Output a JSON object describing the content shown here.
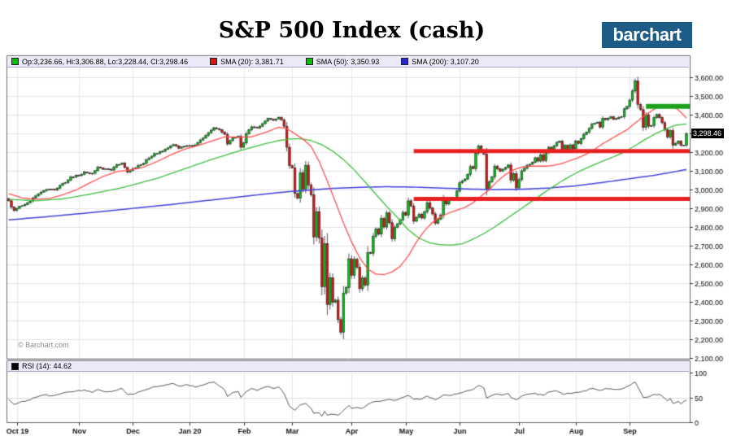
{
  "title": "S&P 500 Index (cash)",
  "logo": {
    "text": "barchart",
    "bg": "#1d5c87"
  },
  "watermark": "© Barchart.com",
  "legend": {
    "items": [
      {
        "label": "Op:3,236.66, Hi:3,306.88, Lo:3,228.44, Cl:3,298.46",
        "color": "#00c000"
      },
      {
        "label": "SMA (20): 3,381.71",
        "color": "#dc1414"
      },
      {
        "label": "SMA (50): 3,350.93",
        "color": "#00c000"
      },
      {
        "label": "SMA (200): 3,107.20",
        "color": "#2828c8"
      }
    ]
  },
  "chart_data": {
    "type": "candlestick",
    "symbol": "S&P 500 Index (cash)",
    "n_days": 252,
    "last": {
      "open": 3236.66,
      "high": 3306.88,
      "low": 3228.44,
      "close": 3298.46,
      "close_label": "3,298.46"
    },
    "colors": {
      "up": "#00c414",
      "down": "#dc1414",
      "candle_edge": "#222222",
      "wick": "#444444",
      "sma20": "#ff5050",
      "sma50": "#3cc03c",
      "sma200": "#4040e0",
      "hline_red": "#e82020",
      "hline_green": "#1da11d",
      "rsi_line": "#555555",
      "grid_h": "#e2e2e2",
      "grid_v": "#e6e6f0",
      "frame": "#666666"
    },
    "y_axis": {
      "min": 2100,
      "max": 3600,
      "step": 100,
      "ticks": [
        {
          "v": 3600,
          "label": "3,600.00"
        },
        {
          "v": 3500,
          "label": "3,500.00"
        },
        {
          "v": 3400,
          "label": "3,400.00"
        },
        {
          "v": 3200,
          "label": "3,200.00"
        },
        {
          "v": 3100,
          "label": "3,100.00"
        },
        {
          "v": 3000,
          "label": "3,000.00"
        },
        {
          "v": 2900,
          "label": "2,900.00"
        },
        {
          "v": 2800,
          "label": "2,800.00"
        },
        {
          "v": 2700,
          "label": "2,700.00"
        },
        {
          "v": 2600,
          "label": "2,600.00"
        },
        {
          "v": 2500,
          "label": "2,500.00"
        },
        {
          "v": 2400,
          "label": "2,400.00"
        },
        {
          "v": 2300,
          "label": "2,300.00"
        },
        {
          "v": 2200,
          "label": "2,200.00"
        },
        {
          "v": 2100,
          "label": "2,100.00"
        }
      ]
    },
    "x_axis": {
      "ticks": [
        {
          "label": "Oct 19",
          "day": 3
        },
        {
          "label": "Nov",
          "day": 26
        },
        {
          "label": "Dec",
          "day": 46
        },
        {
          "label": "Jan 20",
          "day": 67
        },
        {
          "label": "Feb",
          "day": 87
        },
        {
          "label": "Mar",
          "day": 105
        },
        {
          "label": "Apr",
          "day": 127
        },
        {
          "label": "May",
          "day": 147
        },
        {
          "label": "Jun",
          "day": 167
        },
        {
          "label": "Jul",
          "day": 189
        },
        {
          "label": "Aug",
          "day": 210
        },
        {
          "label": "Sep",
          "day": 230
        }
      ]
    },
    "close_anchors": [
      0,
      2940,
      1,
      2906,
      2,
      2888,
      4,
      2910,
      6,
      2920,
      8,
      2939,
      10,
      2966,
      12,
      2986,
      14,
      3000,
      17,
      2998,
      19,
      3022,
      21,
      3037,
      23,
      3067,
      26,
      3075,
      28,
      3093,
      31,
      3087,
      33,
      3120,
      35,
      3108,
      38,
      3104,
      40,
      3133,
      42,
      3141,
      44,
      3093,
      46,
      3112,
      49,
      3132,
      52,
      3169,
      54,
      3192,
      57,
      3205,
      59,
      3223,
      61,
      3240,
      63,
      3221,
      65,
      3231,
      67,
      3235,
      69,
      3238,
      71,
      3265,
      73,
      3289,
      75,
      3317,
      76,
      3330,
      78,
      3320,
      80,
      3295,
      81,
      3244,
      83,
      3276,
      85,
      3284,
      86,
      3226,
      87,
      3249,
      88,
      3298,
      90,
      3335,
      92,
      3328,
      94,
      3352,
      96,
      3380,
      98,
      3370,
      100,
      3386,
      101,
      3373,
      102,
      3338,
      103,
      3226,
      104,
      3128,
      105,
      3116,
      106,
      2979,
      107,
      2954,
      108,
      3090,
      109,
      3003,
      110,
      3130,
      111,
      3024,
      112,
      2972,
      113,
      2747,
      114,
      2882,
      115,
      2741,
      116,
      2481,
      117,
      2711,
      118,
      2386,
      119,
      2529,
      120,
      2398,
      121,
      2409,
      122,
      2305,
      123,
      2237,
      124,
      2447,
      125,
      2476,
      126,
      2630,
      127,
      2541,
      128,
      2627,
      129,
      2585,
      130,
      2470,
      131,
      2527,
      132,
      2489,
      133,
      2664,
      134,
      2659,
      135,
      2750,
      136,
      2790,
      137,
      2762,
      138,
      2846,
      139,
      2800,
      140,
      2875,
      141,
      2823,
      142,
      2737,
      143,
      2799,
      145,
      2837,
      146,
      2878,
      147,
      2863,
      148,
      2940,
      149,
      2912,
      150,
      2831,
      152,
      2868,
      153,
      2848,
      154,
      2881,
      155,
      2930,
      157,
      2870,
      158,
      2820,
      160,
      2864,
      161,
      2954,
      162,
      2923,
      163,
      2949,
      165,
      2949,
      166,
      2992,
      167,
      3036,
      169,
      3056,
      170,
      3081,
      171,
      3123,
      172,
      3112,
      173,
      3194,
      174,
      3232,
      175,
      3207,
      176,
      3190,
      177,
      3002,
      178,
      3041,
      179,
      3067,
      180,
      3125,
      182,
      3098,
      184,
      3118,
      185,
      3131,
      186,
      3050,
      187,
      3084,
      188,
      3009,
      189,
      3053,
      190,
      3100,
      192,
      3130,
      194,
      3145,
      195,
      3170,
      196,
      3152,
      197,
      3185,
      198,
      3155,
      199,
      3197,
      200,
      3226,
      201,
      3215,
      203,
      3252,
      204,
      3258,
      205,
      3216,
      206,
      3236,
      207,
      3216,
      208,
      3239,
      209,
      3218,
      210,
      3258,
      211,
      3246,
      212,
      3271,
      213,
      3295,
      214,
      3307,
      215,
      3327,
      216,
      3349,
      218,
      3360,
      219,
      3334,
      220,
      3380,
      221,
      3373,
      223,
      3390,
      224,
      3375,
      226,
      3386,
      227,
      3390,
      228,
      3431,
      229,
      3444,
      230,
      3478,
      231,
      3527,
      232,
      3581,
      233,
      3455,
      234,
      3427,
      235,
      3332,
      236,
      3399,
      237,
      3339,
      238,
      3341,
      239,
      3384,
      240,
      3401,
      241,
      3385,
      242,
      3357,
      243,
      3319,
      244,
      3281,
      245,
      3315,
      246,
      3237,
      247,
      3247,
      248,
      3258,
      249,
      3236,
      250,
      3237,
      251,
      3298.46
    ],
    "sma20_anchors": [
      0,
      2978,
      5,
      2955,
      10,
      2948,
      15,
      2952,
      20,
      2972,
      25,
      2998,
      30,
      3035,
      35,
      3070,
      40,
      3095,
      45,
      3105,
      50,
      3120,
      55,
      3150,
      60,
      3185,
      65,
      3215,
      70,
      3235,
      75,
      3258,
      80,
      3282,
      85,
      3280,
      90,
      3282,
      95,
      3305,
      100,
      3333,
      103,
      3325,
      106,
      3298,
      109,
      3270,
      112,
      3230,
      115,
      3150,
      118,
      3045,
      121,
      2935,
      124,
      2820,
      127,
      2720,
      130,
      2635,
      133,
      2575,
      136,
      2548,
      139,
      2545,
      142,
      2560,
      145,
      2590,
      148,
      2645,
      151,
      2720,
      154,
      2780,
      157,
      2825,
      160,
      2855,
      163,
      2875,
      166,
      2890,
      169,
      2905,
      172,
      2930,
      175,
      2965,
      178,
      3000,
      181,
      3045,
      184,
      3080,
      187,
      3105,
      190,
      3120,
      193,
      3125,
      196,
      3125,
      199,
      3125,
      202,
      3130,
      205,
      3140,
      208,
      3155,
      211,
      3170,
      214,
      3190,
      217,
      3215,
      220,
      3245,
      223,
      3270,
      226,
      3295,
      229,
      3320,
      232,
      3355,
      235,
      3390,
      238,
      3420,
      241,
      3445,
      244,
      3452,
      246,
      3445,
      248,
      3425,
      251,
      3381.71
    ],
    "sma50_anchors": [
      0,
      2948,
      10,
      2940,
      20,
      2950,
      30,
      2975,
      42,
      3010,
      55,
      3060,
      65,
      3110,
      75,
      3160,
      85,
      3205,
      95,
      3245,
      100,
      3262,
      104,
      3270,
      108,
      3272,
      112,
      3262,
      116,
      3240,
      120,
      3205,
      124,
      3160,
      128,
      3105,
      132,
      3040,
      136,
      2975,
      140,
      2910,
      144,
      2850,
      148,
      2785,
      152,
      2740,
      156,
      2715,
      160,
      2705,
      164,
      2703,
      168,
      2710,
      172,
      2735,
      176,
      2765,
      180,
      2800,
      184,
      2840,
      188,
      2880,
      192,
      2920,
      196,
      2960,
      200,
      3000,
      204,
      3038,
      208,
      3072,
      212,
      3102,
      216,
      3128,
      220,
      3152,
      224,
      3175,
      228,
      3200,
      232,
      3235,
      236,
      3270,
      240,
      3302,
      244,
      3328,
      247,
      3344,
      251,
      3350.93
    ],
    "sma200_anchors": [
      0,
      2838,
      15,
      2856,
      30,
      2876,
      45,
      2898,
      60,
      2920,
      75,
      2944,
      90,
      2968,
      100,
      2984,
      110,
      2996,
      120,
      3006,
      130,
      3012,
      140,
      3015,
      150,
      3013,
      160,
      3008,
      170,
      3003,
      180,
      3000,
      190,
      3002,
      200,
      3008,
      210,
      3020,
      220,
      3038,
      230,
      3058,
      238,
      3074,
      244,
      3088,
      251,
      3107.2
    ],
    "hlines": [
      {
        "price": 3205,
        "from_day": 150,
        "color": "#e82020",
        "lw": 5
      },
      {
        "price": 2950,
        "from_day": 150,
        "color": "#e82020",
        "lw": 5
      },
      {
        "price": 3445,
        "from_day": 236,
        "color": "#1da11d",
        "lw": 6
      }
    ],
    "rsi": {
      "label": "RSI (14): 44.62",
      "value": 44.62,
      "swatch_color": "#000000",
      "y_ticks": [
        {
          "v": 0,
          "label": "0"
        },
        {
          "v": 50,
          "label": "50"
        },
        {
          "v": 100,
          "label": "100"
        }
      ],
      "anchors": [
        0,
        46,
        2,
        36,
        4,
        40,
        7,
        44,
        10,
        50,
        13,
        55,
        16,
        53,
        19,
        57,
        22,
        61,
        25,
        63,
        28,
        65,
        31,
        60,
        33,
        66,
        36,
        61,
        39,
        63,
        42,
        68,
        44,
        56,
        47,
        58,
        50,
        64,
        53,
        70,
        56,
        73,
        59,
        76,
        61,
        78,
        63,
        73,
        66,
        76,
        69,
        71,
        72,
        75,
        75,
        80,
        76,
        81,
        78,
        73,
        80,
        65,
        81,
        52,
        83,
        60,
        85,
        62,
        86,
        50,
        88,
        62,
        90,
        68,
        92,
        64,
        94,
        69,
        96,
        72,
        98,
        68,
        100,
        71,
        102,
        58,
        104,
        32,
        106,
        24,
        108,
        35,
        110,
        38,
        112,
        28,
        113,
        18,
        115,
        19,
        116,
        12,
        117,
        22,
        118,
        14,
        120,
        16,
        122,
        14,
        124,
        24,
        126,
        34,
        127,
        28,
        129,
        30,
        131,
        28,
        133,
        36,
        135,
        41,
        137,
        42,
        139,
        44,
        141,
        46,
        143,
        44,
        146,
        50,
        148,
        54,
        150,
        46,
        153,
        47,
        155,
        53,
        158,
        45,
        161,
        55,
        163,
        54,
        166,
        57,
        169,
        62,
        172,
        66,
        174,
        74,
        176,
        69,
        177,
        49,
        179,
        54,
        181,
        57,
        183,
        55,
        185,
        58,
        186,
        50,
        188,
        45,
        190,
        53,
        193,
        57,
        195,
        58,
        198,
        54,
        200,
        61,
        203,
        63,
        205,
        57,
        208,
        58,
        210,
        60,
        213,
        63,
        216,
        68,
        219,
        64,
        221,
        68,
        224,
        66,
        227,
        67,
        229,
        72,
        232,
        81,
        234,
        61,
        235,
        50,
        237,
        51,
        239,
        56,
        241,
        56,
        243,
        48,
        244,
        43,
        245,
        48,
        246,
        38,
        248,
        42,
        249,
        37,
        251,
        44.62
      ]
    }
  }
}
